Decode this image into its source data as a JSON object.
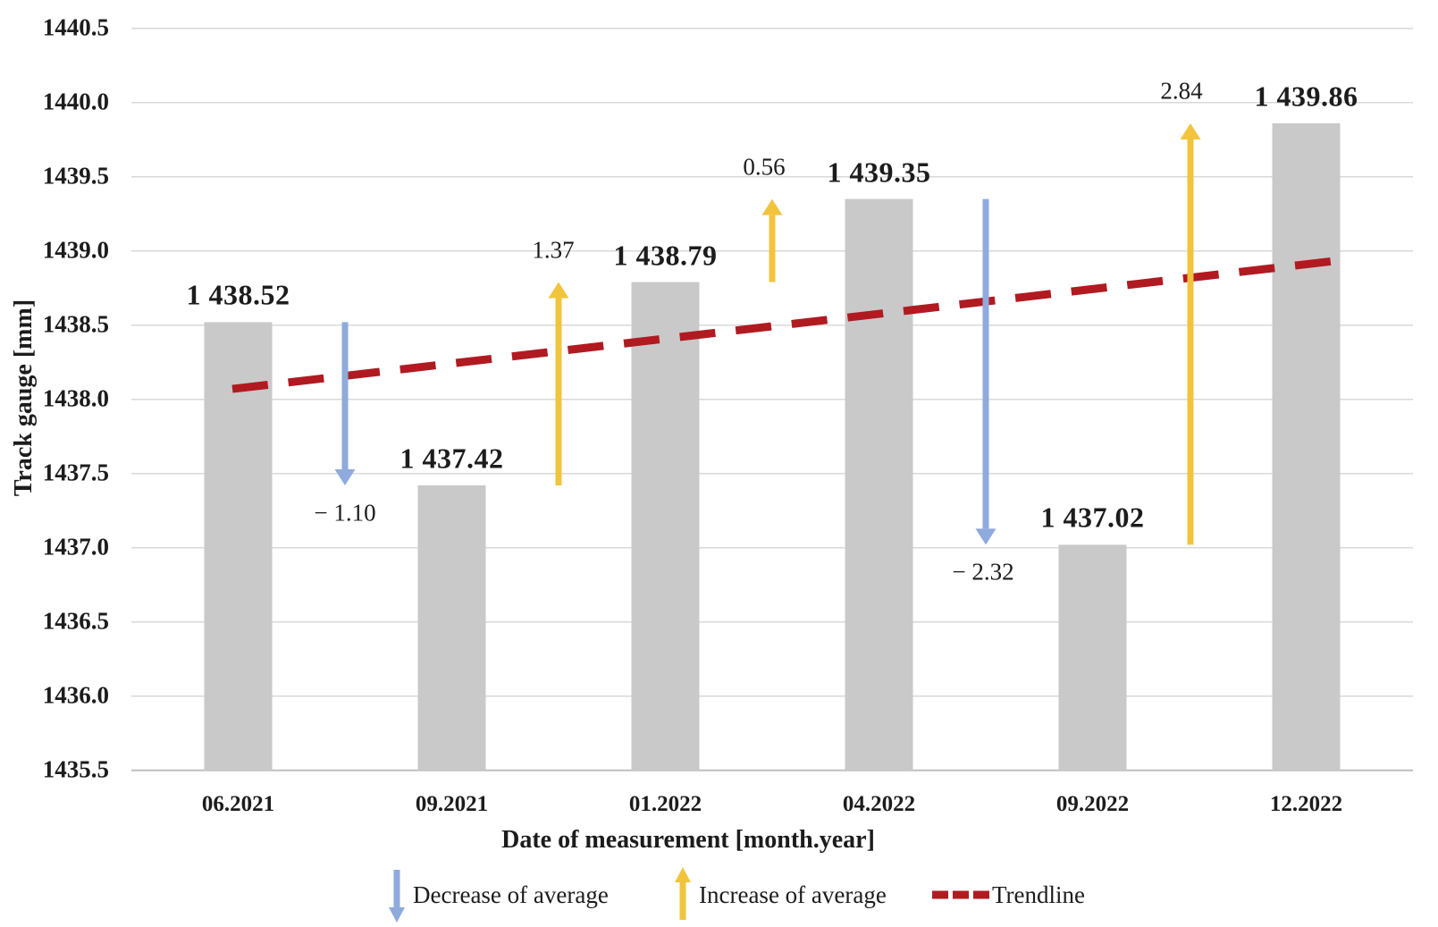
{
  "chart_data": {
    "type": "bar",
    "title": "",
    "xlabel": "Date of measurement [month.year]",
    "ylabel": "Track gauge [mm]",
    "categories": [
      "06.2021",
      "09.2021",
      "01.2022",
      "04.2022",
      "09.2022",
      "12.2022"
    ],
    "values": [
      1438.52,
      1437.42,
      1438.79,
      1439.35,
      1437.02,
      1439.86
    ],
    "value_labels": [
      "1 438.52",
      "1 437.42",
      "1 438.79",
      "1 439.35",
      "1 437.02",
      "1 439.86"
    ],
    "changes": [
      {
        "from": "06.2021",
        "to": "09.2021",
        "value": -1.1,
        "label": "− 1.10",
        "direction": "decrease"
      },
      {
        "from": "09.2021",
        "to": "01.2022",
        "value": 1.37,
        "label": "1.37",
        "direction": "increase"
      },
      {
        "from": "01.2022",
        "to": "04.2022",
        "value": 0.56,
        "label": "0.56",
        "direction": "increase"
      },
      {
        "from": "04.2022",
        "to": "09.2022",
        "value": -2.32,
        "label": "− 2.32",
        "direction": "decrease"
      },
      {
        "from": "09.2022",
        "to": "12.2022",
        "value": 2.84,
        "label": "2.84",
        "direction": "increase"
      }
    ],
    "trendline": {
      "start_value": 1438.07,
      "end_value": 1438.93
    },
    "ylim": [
      1435.5,
      1440.5
    ],
    "ytick_step": 0.5,
    "ytick_labels": [
      "1435.5",
      "1436.0",
      "1436.5",
      "1437.0",
      "1437.5",
      "1438.0",
      "1438.5",
      "1439.0",
      "1439.5",
      "1440.0",
      "1440.5"
    ],
    "grid": true,
    "legend_position": "bottom",
    "legend": [
      {
        "label": "Decrease of average",
        "marker": "down-arrow"
      },
      {
        "label": "Increase of average",
        "marker": "up-arrow"
      },
      {
        "label": "Trendline",
        "marker": "dashed-line"
      }
    ]
  },
  "colors": {
    "bar": "#C9C9C9",
    "decrease_arrow": "#8FAADC",
    "increase_arrow": "#F2C43D",
    "trendline": "#B11A21",
    "gridline": "#D9D9D9",
    "axis_line": "#BFBFBF",
    "text": "#1C1C1C"
  }
}
